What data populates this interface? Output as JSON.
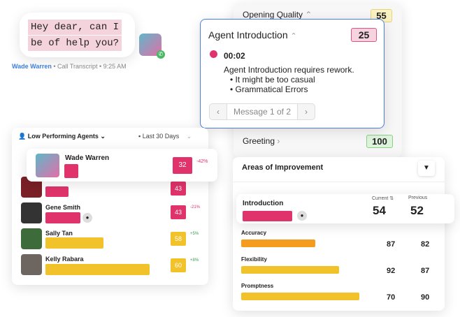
{
  "chat": {
    "line1": "Hey dear, can I",
    "line2": "be of help you?",
    "agent": "Wade Warren",
    "meta": " • Call Transcript • 9:25 AM"
  },
  "quality": {
    "opening_label": "Opening Quality",
    "opening_score": "55",
    "greeting_label": "Greeting",
    "greeting_score": "100"
  },
  "intro_card": {
    "title": "Agent Introduction",
    "score": "25",
    "time": "00:02",
    "message": "Agent Introduction requires rework.",
    "bullets": [
      "It might be too casual",
      "Grammatical Errors"
    ],
    "pager": "Message 1 of 2"
  },
  "agents": {
    "title": "Low Performing Agents",
    "range": "Last 30 Days",
    "featured": {
      "name": "Wade Warren",
      "score": "32",
      "delta": "-42%"
    },
    "rows": [
      {
        "name": "",
        "score": "43",
        "delta": ""
      },
      {
        "name": "Gene Smith",
        "score": "43",
        "delta": "-21%"
      },
      {
        "name": "Sally Tan",
        "score": "58",
        "delta": "+5%"
      },
      {
        "name": "Kelly Rabara",
        "score": "60",
        "delta": "+8%"
      }
    ]
  },
  "areas": {
    "title": "Areas of Improvement",
    "current_label": "Current",
    "previous_label": "Previous",
    "featured": {
      "name": "Introduction",
      "current": "54",
      "previous": "52"
    },
    "rows": [
      {
        "name": "Accuracy",
        "current": "87",
        "previous": "82"
      },
      {
        "name": "Flexibility",
        "current": "92",
        "previous": "87"
      },
      {
        "name": "Promptness",
        "current": "70",
        "previous": "90"
      }
    ]
  },
  "colors": {
    "pink": "#e0336b",
    "yellow": "#f1c22a",
    "orange": "#f59c1f",
    "blue": "#4a7fe0"
  }
}
